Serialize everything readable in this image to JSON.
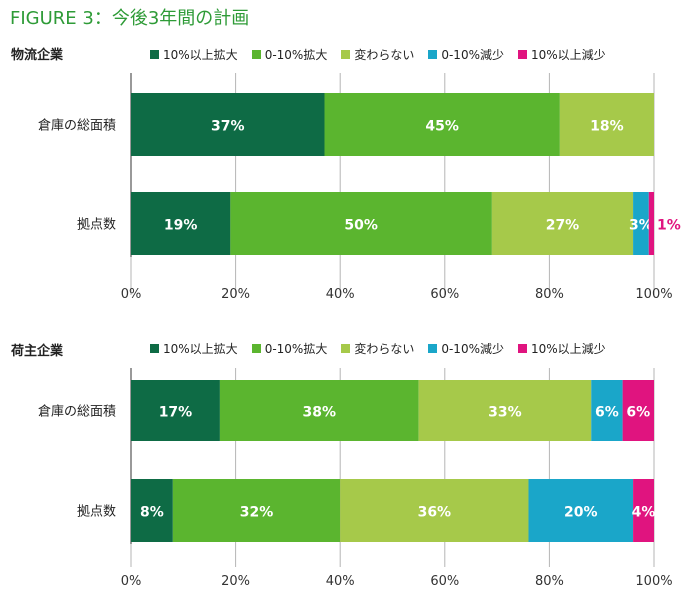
{
  "figure_title": "FIGURE 3：今後3年間の計画",
  "colors": {
    "title": "#2e9b37",
    "grid": "#b5b5b5",
    "axis": "#333333",
    "label_light": "#ffffff",
    "label_outside": "#e0147f"
  },
  "legend": [
    {
      "label": "10%以上拡大",
      "color": "#0e6b45"
    },
    {
      "label": "0-10%拡大",
      "color": "#5bb52f"
    },
    {
      "label": "変わらない",
      "color": "#a6c94a"
    },
    {
      "label": "0-10%減少",
      "color": "#1aa6c9"
    },
    {
      "label": "10%以上減少",
      "color": "#e0147f"
    }
  ],
  "chart_data": [
    {
      "type": "bar",
      "orientation": "horizontal",
      "stacked": true,
      "title": "物流企業",
      "categories": [
        "倉庫の総面積",
        "拠点数"
      ],
      "series": [
        {
          "name": "10%以上拡大",
          "values": [
            37,
            19
          ]
        },
        {
          "name": "0-10%拡大",
          "values": [
            45,
            50
          ]
        },
        {
          "name": "変わらない",
          "values": [
            18,
            27
          ]
        },
        {
          "name": "0-10%減少",
          "values": [
            0,
            3
          ]
        },
        {
          "name": "10%以上減少",
          "values": [
            0,
            1
          ]
        }
      ],
      "xlim": [
        0,
        100
      ],
      "xticks": [
        "0%",
        "20%",
        "40%",
        "60%",
        "80%",
        "100%"
      ],
      "grid": true,
      "legend_position": "top"
    },
    {
      "type": "bar",
      "orientation": "horizontal",
      "stacked": true,
      "title": "荷主企業",
      "categories": [
        "倉庫の総面積",
        "拠点数"
      ],
      "series": [
        {
          "name": "10%以上拡大",
          "values": [
            17,
            8
          ]
        },
        {
          "name": "0-10%拡大",
          "values": [
            38,
            32
          ]
        },
        {
          "name": "変わらない",
          "values": [
            33,
            36
          ]
        },
        {
          "name": "0-10%減少",
          "values": [
            6,
            20
          ]
        },
        {
          "name": "10%以上減少",
          "values": [
            6,
            4
          ]
        }
      ],
      "xlim": [
        0,
        100
      ],
      "xticks": [
        "0%",
        "20%",
        "40%",
        "60%",
        "80%",
        "100%"
      ],
      "grid": true,
      "legend_position": "top"
    }
  ]
}
